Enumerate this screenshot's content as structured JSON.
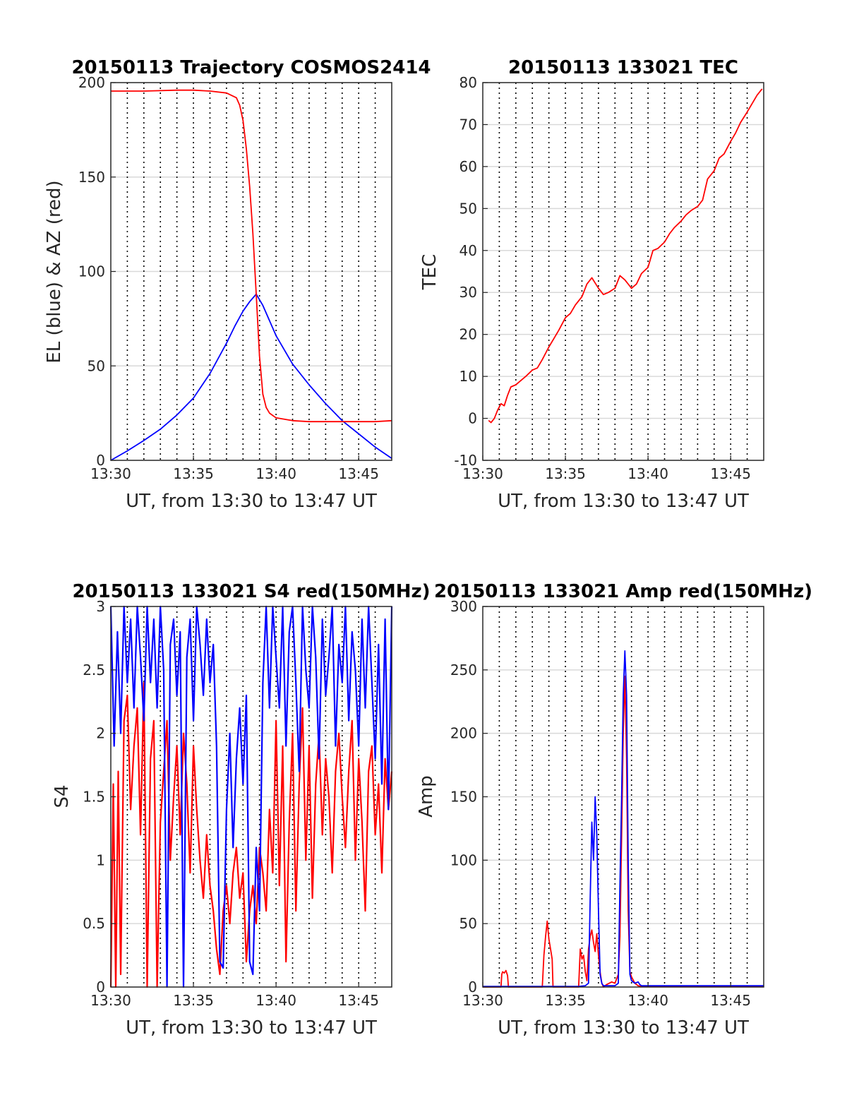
{
  "chart_data": [
    {
      "id": "trajectory",
      "type": "line",
      "title": "20150113 Trajectory COSMOS2414",
      "xlabel": "UT, from 13:30 to 13:47 UT",
      "ylabel": "EL (blue) & AZ (red)",
      "xlim": [
        0,
        17
      ],
      "ylim": [
        0,
        200
      ],
      "xticks": [
        {
          "v": 0,
          "label": "13:30"
        },
        {
          "v": 5,
          "label": "13:35"
        },
        {
          "v": 10,
          "label": "13:40"
        },
        {
          "v": 15,
          "label": "13:45"
        }
      ],
      "yticks": [
        {
          "v": 0,
          "label": "0"
        },
        {
          "v": 50,
          "label": "50"
        },
        {
          "v": 100,
          "label": "100"
        },
        {
          "v": 150,
          "label": "150"
        },
        {
          "v": 200,
          "label": "200"
        }
      ],
      "grid": true,
      "series": [
        {
          "color": "#0000ff",
          "x": [
            0,
            1,
            2,
            3,
            4,
            5,
            6,
            7,
            7.5,
            8,
            8.4,
            8.8,
            9.2,
            9.6,
            10,
            11,
            12,
            13,
            14,
            15,
            16,
            17
          ],
          "y": [
            0,
            5,
            10.5,
            16.5,
            24,
            33,
            46,
            62,
            71,
            79,
            84,
            88,
            82,
            74,
            66,
            51,
            40,
            30,
            21,
            14,
            7,
            1
          ]
        },
        {
          "color": "#ff0000",
          "x": [
            0,
            2,
            4,
            5,
            6,
            7,
            7.6,
            7.8,
            8.0,
            8.2,
            8.4,
            8.6,
            8.8,
            9.0,
            9.2,
            9.4,
            9.6,
            10,
            11,
            12,
            13,
            14,
            15,
            16,
            17
          ],
          "y": [
            195.5,
            195.5,
            196,
            196,
            195.5,
            194.5,
            192,
            188,
            180,
            165,
            145,
            120,
            88,
            55,
            35,
            28,
            25,
            22.5,
            21,
            20.5,
            20.5,
            20.5,
            20.5,
            20.5,
            21
          ]
        }
      ]
    },
    {
      "id": "tec",
      "type": "line",
      "title": "20150113 133021 TEC",
      "xlabel": "UT, from 13:30 to 13:47 UT",
      "ylabel": "TEC",
      "xlim": [
        0,
        17
      ],
      "ylim": [
        -10,
        80
      ],
      "xticks": [
        {
          "v": 0,
          "label": "13:30"
        },
        {
          "v": 5,
          "label": "13:35"
        },
        {
          "v": 10,
          "label": "13:40"
        },
        {
          "v": 15,
          "label": "13:45"
        }
      ],
      "yticks": [
        {
          "v": -10,
          "label": "-10"
        },
        {
          "v": 0,
          "label": "0"
        },
        {
          "v": 10,
          "label": "10"
        },
        {
          "v": 20,
          "label": "20"
        },
        {
          "v": 30,
          "label": "30"
        },
        {
          "v": 40,
          "label": "40"
        },
        {
          "v": 50,
          "label": "50"
        },
        {
          "v": 60,
          "label": "60"
        },
        {
          "v": 70,
          "label": "70"
        },
        {
          "v": 80,
          "label": "80"
        }
      ],
      "grid": true,
      "series": [
        {
          "color": "#ff0000",
          "x": [
            0.35,
            0.5,
            0.7,
            0.9,
            1.1,
            1.3,
            1.5,
            1.7,
            2.0,
            2.3,
            2.6,
            3.0,
            3.3,
            3.6,
            4.0,
            4.3,
            4.6,
            5.0,
            5.3,
            5.6,
            6.0,
            6.3,
            6.6,
            7.0,
            7.3,
            7.6,
            8.0,
            8.3,
            8.6,
            9.0,
            9.3,
            9.6,
            10.0,
            10.3,
            10.6,
            11.0,
            11.3,
            11.6,
            12.0,
            12.3,
            12.6,
            13.0,
            13.3,
            13.6,
            14.0,
            14.3,
            14.6,
            15.0,
            15.3,
            15.6,
            16.0,
            16.3,
            16.6,
            16.9
          ],
          "y": [
            -0.5,
            -1,
            0,
            2,
            3.5,
            3,
            5.5,
            7.5,
            8,
            9,
            10,
            11.5,
            12,
            14,
            17,
            19,
            21,
            24,
            25,
            27,
            29,
            32,
            33.5,
            31,
            29.5,
            30,
            31,
            34,
            33,
            31,
            32,
            34.5,
            36,
            40,
            40.5,
            42,
            44,
            45.5,
            47,
            48.5,
            49.5,
            50.5,
            52,
            57,
            59,
            62,
            63,
            66,
            68,
            70.5,
            73,
            75,
            77,
            78.5
          ]
        }
      ]
    },
    {
      "id": "s4",
      "type": "line",
      "title": "20150113 133021 S4 red(150MHz)",
      "xlabel": "UT, from 13:30 to 13:47 UT",
      "ylabel": "S4",
      "xlim": [
        0,
        17
      ],
      "ylim": [
        0,
        3
      ],
      "xticks": [
        {
          "v": 0,
          "label": "13:30"
        },
        {
          "v": 5,
          "label": "13:35"
        },
        {
          "v": 10,
          "label": "13:40"
        },
        {
          "v": 15,
          "label": "13:45"
        }
      ],
      "yticks": [
        {
          "v": 0,
          "label": "0"
        },
        {
          "v": 0.5,
          "label": "0.5"
        },
        {
          "v": 1,
          "label": "1"
        },
        {
          "v": 1.5,
          "label": "1.5"
        },
        {
          "v": 2,
          "label": "2"
        },
        {
          "v": 2.5,
          "label": "2.5"
        },
        {
          "v": 3,
          "label": "3"
        }
      ],
      "grid": true,
      "series": [
        {
          "color": "#ff0000",
          "x": [
            0,
            0.15,
            0.3,
            0.45,
            0.6,
            0.8,
            1.0,
            1.2,
            1.4,
            1.6,
            1.8,
            2.0,
            2.2,
            2.4,
            2.6,
            2.8,
            3.0,
            3.2,
            3.4,
            3.6,
            3.8,
            4.0,
            4.2,
            4.4,
            4.6,
            4.8,
            5.0,
            5.2,
            5.4,
            5.6,
            5.8,
            6.0,
            6.2,
            6.4,
            6.6,
            6.8,
            7.0,
            7.2,
            7.4,
            7.6,
            7.8,
            8.0,
            8.2,
            8.4,
            8.6,
            8.8,
            9.0,
            9.2,
            9.4,
            9.6,
            9.8,
            10.0,
            10.2,
            10.4,
            10.6,
            10.8,
            11.0,
            11.2,
            11.4,
            11.6,
            11.8,
            12.0,
            12.2,
            12.4,
            12.6,
            12.8,
            13.0,
            13.2,
            13.4,
            13.6,
            13.8,
            14.0,
            14.2,
            14.4,
            14.6,
            14.8,
            15.0,
            15.2,
            15.4,
            15.6,
            15.8,
            16.0,
            16.2,
            16.4,
            16.6,
            16.8,
            17.0
          ],
          "y": [
            0,
            1.6,
            0,
            1.7,
            0.1,
            2.1,
            2.3,
            1.4,
            1.9,
            2.2,
            1.2,
            2.4,
            0,
            1.8,
            2.1,
            0,
            1.3,
            1.7,
            2.1,
            1.0,
            1.5,
            1.9,
            1.2,
            2.0,
            1.6,
            0.9,
            1.9,
            1.4,
            1.0,
            0.7,
            1.2,
            0.8,
            0.6,
            0.3,
            0.1,
            0.6,
            0.8,
            0.5,
            0.9,
            1.1,
            0.7,
            0.9,
            0.2,
            0.6,
            0.8,
            0.5,
            1.1,
            0.9,
            0.6,
            1.4,
            0.9,
            2.1,
            0.8,
            1.9,
            0.2,
            1.3,
            2.0,
            0.6,
            1.6,
            2.2,
            1.0,
            1.9,
            0.7,
            1.6,
            2.0,
            1.2,
            1.8,
            1.5,
            0.9,
            1.7,
            2.0,
            1.5,
            1.1,
            1.7,
            2.1,
            1.0,
            1.8,
            1.3,
            0.6,
            1.7,
            1.9,
            1.2,
            1.6,
            0.9,
            1.8,
            1.4,
            1.7
          ]
        },
        {
          "color": "#0000ff",
          "x": [
            0,
            0.2,
            0.4,
            0.6,
            0.8,
            1.0,
            1.2,
            1.4,
            1.6,
            1.8,
            2.0,
            2.2,
            2.4,
            2.6,
            2.8,
            3.0,
            3.2,
            3.4,
            3.6,
            3.8,
            4.0,
            4.2,
            4.4,
            4.6,
            4.8,
            5.0,
            5.2,
            5.4,
            5.6,
            5.8,
            6.0,
            6.2,
            6.4,
            6.6,
            6.8,
            7.0,
            7.2,
            7.4,
            7.6,
            7.8,
            8.0,
            8.2,
            8.4,
            8.6,
            8.8,
            9.0,
            9.2,
            9.4,
            9.6,
            9.8,
            10.0,
            10.2,
            10.4,
            10.6,
            10.8,
            11.0,
            11.2,
            11.4,
            11.6,
            11.8,
            12.0,
            12.2,
            12.4,
            12.6,
            12.8,
            13.0,
            13.2,
            13.4,
            13.6,
            13.8,
            14.0,
            14.2,
            14.4,
            14.6,
            14.8,
            15.0,
            15.2,
            15.4,
            15.6,
            15.8,
            16.0,
            16.2,
            16.4,
            16.6,
            16.8,
            17.0
          ],
          "y": [
            3.0,
            1.9,
            2.8,
            2.0,
            3.0,
            2.4,
            2.9,
            2.2,
            3.0,
            2.6,
            2.1,
            3.0,
            2.4,
            2.9,
            2.2,
            3.0,
            2.5,
            0,
            2.7,
            2.9,
            2.3,
            2.8,
            0,
            2.6,
            2.9,
            2.1,
            3.0,
            2.7,
            2.3,
            2.9,
            2.4,
            2.7,
            1.9,
            0.2,
            0.15,
            1.4,
            2.0,
            1.1,
            1.8,
            2.2,
            1.6,
            2.3,
            0.2,
            0.1,
            1.1,
            0.6,
            2.4,
            3.0,
            2.2,
            3.0,
            2.6,
            2.2,
            3.0,
            1.9,
            2.8,
            3.0,
            2.4,
            1.7,
            3.0,
            2.5,
            2.2,
            3.0,
            2.6,
            1.8,
            2.9,
            2.3,
            2.6,
            3.0,
            1.9,
            2.7,
            2.4,
            3.0,
            2.1,
            2.8,
            2.5,
            1.9,
            2.9,
            2.2,
            3.0,
            2.4,
            1.8,
            2.7,
            1.6,
            2.9,
            1.4,
            3.0
          ]
        }
      ]
    },
    {
      "id": "amp",
      "type": "line",
      "title": "20150113 133021 Amp red(150MHz)",
      "xlabel": "UT, from 13:30 to 13:47 UT",
      "ylabel": "Amp",
      "xlim": [
        0,
        17
      ],
      "ylim": [
        0,
        300
      ],
      "xticks": [
        {
          "v": 0,
          "label": "13:30"
        },
        {
          "v": 5,
          "label": "13:35"
        },
        {
          "v": 10,
          "label": "13:40"
        },
        {
          "v": 15,
          "label": "13:45"
        }
      ],
      "yticks": [
        {
          "v": 0,
          "label": "0"
        },
        {
          "v": 50,
          "label": "50"
        },
        {
          "v": 100,
          "label": "100"
        },
        {
          "v": 150,
          "label": "150"
        },
        {
          "v": 200,
          "label": "200"
        },
        {
          "v": 250,
          "label": "250"
        },
        {
          "v": 300,
          "label": "300"
        }
      ],
      "grid": true,
      "series": [
        {
          "color": "#ff0000",
          "x": [
            0,
            1.1,
            1.15,
            1.2,
            1.3,
            1.4,
            1.5,
            1.55,
            3.6,
            3.7,
            3.8,
            3.9,
            4.0,
            4.1,
            4.2,
            4.25,
            5.8,
            5.9,
            6.0,
            6.1,
            6.2,
            6.3,
            6.4,
            6.5,
            6.6,
            6.7,
            6.8,
            6.9,
            7.0,
            7.1,
            7.2,
            7.3,
            7.5,
            7.8,
            8.0,
            8.2,
            8.3,
            8.4,
            8.5,
            8.6,
            8.7,
            8.8,
            8.9,
            9.0,
            9.2,
            9.4,
            9.6,
            10,
            12,
            14,
            16,
            17
          ],
          "y": [
            0,
            0,
            10,
            12,
            11,
            13,
            9,
            0,
            0,
            25,
            40,
            52,
            38,
            30,
            22,
            0,
            0,
            30,
            22,
            25,
            12,
            5,
            30,
            40,
            45,
            35,
            28,
            42,
            25,
            12,
            3,
            0,
            2,
            4,
            3,
            10,
            40,
            120,
            200,
            245,
            180,
            60,
            12,
            8,
            3,
            1,
            0.5,
            0.5,
            0.5,
            0.5,
            0.5,
            0.5
          ]
        },
        {
          "color": "#0000ff",
          "x": [
            0,
            2,
            4,
            5.8,
            6.2,
            6.4,
            6.5,
            6.6,
            6.7,
            6.8,
            6.9,
            7.0,
            7.1,
            7.2,
            7.3,
            7.5,
            7.8,
            8.0,
            8.2,
            8.3,
            8.4,
            8.5,
            8.6,
            8.7,
            8.8,
            8.9,
            9.0,
            9.2,
            9.4,
            9.5,
            9.6,
            10,
            12,
            14,
            16,
            17
          ],
          "y": [
            0.5,
            0.5,
            0.5,
            0.5,
            1,
            3,
            70,
            130,
            100,
            150,
            120,
            60,
            10,
            3,
            1,
            1,
            1,
            1,
            3,
            80,
            150,
            230,
            265,
            230,
            100,
            10,
            5,
            3,
            4,
            2,
            1,
            1,
            1,
            1,
            1,
            1
          ]
        }
      ]
    }
  ]
}
